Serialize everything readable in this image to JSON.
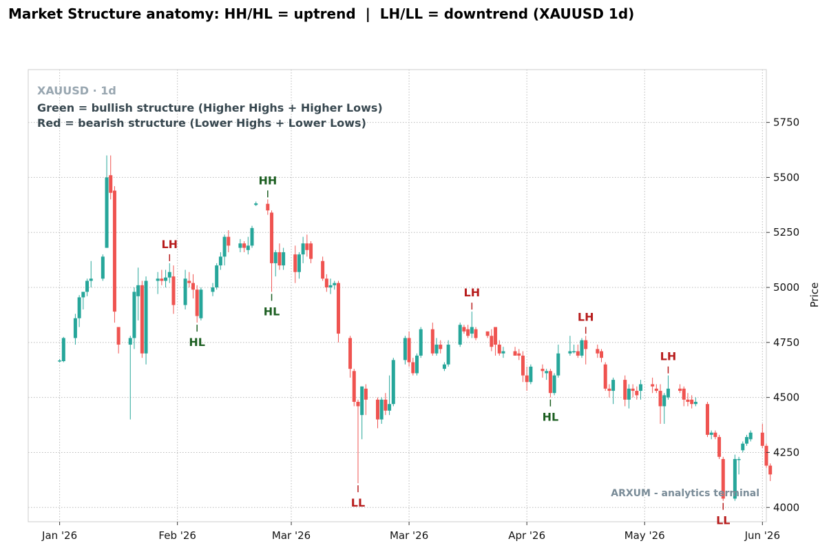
{
  "page_title": "Market Structure anatomy: HH/HL = uptrend  |  LH/LL = downtrend (XAUUSD 1d)",
  "info": {
    "symbol": "XAUUSD · 1d",
    "line1": "Green = bullish structure (Higher Highs + Higher Lows)",
    "line2": "Red = bearish structure (Lower Highs + Lower Lows)"
  },
  "watermark": "ARXUM - analytics terminal",
  "colors": {
    "up": "#26a69a",
    "down": "#ef5350",
    "bull_label": "#1b5e20",
    "bear_label": "#b71c1c",
    "info_symbol": "#98a6b0",
    "info_text": "#37474f"
  },
  "chart_data": {
    "type": "candlestick",
    "title": "Market Structure anatomy: HH/HL = uptrend  |  LH/LL = downtrend (XAUUSD 1d)",
    "ylabel": "Price",
    "ylim": [
      3935,
      5990
    ],
    "xlim": [
      "2025-12-24",
      "2026-06-30"
    ],
    "y_ticks": [
      4000,
      4250,
      4500,
      4750,
      5000,
      5250,
      5500,
      5750
    ],
    "x_ticks": [
      {
        "date": "2026-01-01",
        "label": "Jan '26"
      },
      {
        "date": "2026-01-31",
        "label": "Feb '26"
      },
      {
        "date": "2026-03-01",
        "label": "Mar '26"
      },
      {
        "date": "2026-03-31",
        "label": "Mar '26"
      },
      {
        "date": "2026-04-30",
        "label": "Apr '26"
      },
      {
        "date": "2026-05-30",
        "label": "May '26"
      },
      {
        "date": "2026-06-29",
        "label": "Jun '26"
      }
    ],
    "grid": true,
    "candles": [
      {
        "date": "2026-01-01",
        "o": 4665,
        "h": 4675,
        "l": 4660,
        "c": 4668
      },
      {
        "date": "2026-01-02",
        "o": 4665,
        "h": 4775,
        "l": 4660,
        "c": 4770
      },
      {
        "date": "2026-01-05",
        "o": 4770,
        "h": 4880,
        "l": 4740,
        "c": 4860
      },
      {
        "date": "2026-01-06",
        "o": 4860,
        "h": 4965,
        "l": 4820,
        "c": 4955
      },
      {
        "date": "2026-01-07",
        "o": 4955,
        "h": 4975,
        "l": 4900,
        "c": 4980
      },
      {
        "date": "2026-01-08",
        "o": 4980,
        "h": 5040,
        "l": 4960,
        "c": 5030
      },
      {
        "date": "2026-01-09",
        "o": 5030,
        "h": 5120,
        "l": 5000,
        "c": 5040
      },
      {
        "date": "2026-01-12",
        "o": 5040,
        "h": 5150,
        "l": 5030,
        "c": 5140
      },
      {
        "date": "2026-01-13",
        "o": 5180,
        "h": 5600,
        "l": 5180,
        "c": 5500
      },
      {
        "date": "2026-01-14",
        "o": 5510,
        "h": 5600,
        "l": 5400,
        "c": 5430
      },
      {
        "date": "2026-01-15",
        "o": 5440,
        "h": 5460,
        "l": 4840,
        "c": 4890
      },
      {
        "date": "2026-01-16",
        "o": 4820,
        "h": 4820,
        "l": 4700,
        "c": 4740
      },
      {
        "date": "2026-01-19",
        "o": 4740,
        "h": 4780,
        "l": 4400,
        "c": 4770
      },
      {
        "date": "2026-01-20",
        "o": 4770,
        "h": 5000,
        "l": 4720,
        "c": 4980
      },
      {
        "date": "2026-01-21",
        "o": 4960,
        "h": 5090,
        "l": 4850,
        "c": 5010
      },
      {
        "date": "2026-01-22",
        "o": 5010,
        "h": 5030,
        "l": 4680,
        "c": 4700
      },
      {
        "date": "2026-01-23",
        "o": 4700,
        "h": 5050,
        "l": 4650,
        "c": 5030
      },
      {
        "date": "2026-01-26",
        "o": 5030,
        "h": 5070,
        "l": 4970,
        "c": 5040
      },
      {
        "date": "2026-01-27",
        "o": 5040,
        "h": 5080,
        "l": 5010,
        "c": 5030
      },
      {
        "date": "2026-01-28",
        "o": 5030,
        "h": 5080,
        "l": 5000,
        "c": 5045
      },
      {
        "date": "2026-01-29",
        "o": 5045,
        "h": 5110,
        "l": 5020,
        "c": 5070
      },
      {
        "date": "2026-01-30",
        "o": 5050,
        "h": 5100,
        "l": 4880,
        "c": 4920
      },
      {
        "date": "2026-02-02",
        "o": 4920,
        "h": 5080,
        "l": 4900,
        "c": 5040
      },
      {
        "date": "2026-02-03",
        "o": 5030,
        "h": 5070,
        "l": 5000,
        "c": 5020
      },
      {
        "date": "2026-02-04",
        "o": 5020,
        "h": 5060,
        "l": 4950,
        "c": 4990
      },
      {
        "date": "2026-02-05",
        "o": 4990,
        "h": 5010,
        "l": 4840,
        "c": 4870
      },
      {
        "date": "2026-02-06",
        "o": 4860,
        "h": 5000,
        "l": 4850,
        "c": 4990
      },
      {
        "date": "2026-02-09",
        "o": 4980,
        "h": 5020,
        "l": 4960,
        "c": 5000
      },
      {
        "date": "2026-02-10",
        "o": 5000,
        "h": 5110,
        "l": 4990,
        "c": 5100
      },
      {
        "date": "2026-02-11",
        "o": 5100,
        "h": 5160,
        "l": 5080,
        "c": 5140
      },
      {
        "date": "2026-02-12",
        "o": 5140,
        "h": 5240,
        "l": 5100,
        "c": 5230
      },
      {
        "date": "2026-02-13",
        "o": 5230,
        "h": 5260,
        "l": 5160,
        "c": 5190
      },
      {
        "date": "2026-02-16",
        "o": 5180,
        "h": 5220,
        "l": 5160,
        "c": 5200
      },
      {
        "date": "2026-02-17",
        "o": 5200,
        "h": 5210,
        "l": 5160,
        "c": 5180
      },
      {
        "date": "2026-02-18",
        "o": 5170,
        "h": 5230,
        "l": 5150,
        "c": 5190
      },
      {
        "date": "2026-02-19",
        "o": 5190,
        "h": 5280,
        "l": 5180,
        "c": 5270
      },
      {
        "date": "2026-02-20",
        "o": 5375,
        "h": 5390,
        "l": 5370,
        "c": 5382
      },
      {
        "date": "2026-02-23",
        "o": 5380,
        "h": 5400,
        "l": 5330,
        "c": 5350
      },
      {
        "date": "2026-02-24",
        "o": 5340,
        "h": 5350,
        "l": 4980,
        "c": 5110
      },
      {
        "date": "2026-02-25",
        "o": 5110,
        "h": 5170,
        "l": 5050,
        "c": 5160
      },
      {
        "date": "2026-02-26",
        "o": 5160,
        "h": 5200,
        "l": 5080,
        "c": 5100
      },
      {
        "date": "2026-02-27",
        "o": 5100,
        "h": 5180,
        "l": 5080,
        "c": 5160
      },
      {
        "date": "2026-03-02",
        "o": 5150,
        "h": 5190,
        "l": 5020,
        "c": 5070
      },
      {
        "date": "2026-03-03",
        "o": 5070,
        "h": 5160,
        "l": 5040,
        "c": 5150
      },
      {
        "date": "2026-03-04",
        "o": 5150,
        "h": 5230,
        "l": 5110,
        "c": 5200
      },
      {
        "date": "2026-03-05",
        "o": 5200,
        "h": 5240,
        "l": 5140,
        "c": 5170
      },
      {
        "date": "2026-03-06",
        "o": 5200,
        "h": 5210,
        "l": 5110,
        "c": 5130
      },
      {
        "date": "2026-03-09",
        "o": 5120,
        "h": 5140,
        "l": 5030,
        "c": 5040
      },
      {
        "date": "2026-03-10",
        "o": 5040,
        "h": 5060,
        "l": 4980,
        "c": 5000
      },
      {
        "date": "2026-03-11",
        "o": 5000,
        "h": 5040,
        "l": 4970,
        "c": 5010
      },
      {
        "date": "2026-03-12",
        "o": 5010,
        "h": 5030,
        "l": 4990,
        "c": 5020
      },
      {
        "date": "2026-03-13",
        "o": 5020,
        "h": 5030,
        "l": 4750,
        "c": 4790
      },
      {
        "date": "2026-03-16",
        "o": 4770,
        "h": 4780,
        "l": 4590,
        "c": 4630
      },
      {
        "date": "2026-03-17",
        "o": 4620,
        "h": 4630,
        "l": 4460,
        "c": 4480
      },
      {
        "date": "2026-03-18",
        "o": 4480,
        "h": 4490,
        "l": 4110,
        "c": 4460
      },
      {
        "date": "2026-03-19",
        "o": 4420,
        "h": 4550,
        "l": 4310,
        "c": 4550
      },
      {
        "date": "2026-03-20",
        "o": 4540,
        "h": 4560,
        "l": 4420,
        "c": 4490
      },
      {
        "date": "2026-03-23",
        "o": 4490,
        "h": 4500,
        "l": 4360,
        "c": 4400
      },
      {
        "date": "2026-03-24",
        "o": 4400,
        "h": 4500,
        "l": 4380,
        "c": 4490
      },
      {
        "date": "2026-03-25",
        "o": 4490,
        "h": 4520,
        "l": 4420,
        "c": 4440
      },
      {
        "date": "2026-03-26",
        "o": 4440,
        "h": 4600,
        "l": 4420,
        "c": 4470
      },
      {
        "date": "2026-03-27",
        "o": 4470,
        "h": 4680,
        "l": 4460,
        "c": 4670
      },
      {
        "date": "2026-03-30",
        "o": 4670,
        "h": 4780,
        "l": 4650,
        "c": 4770
      },
      {
        "date": "2026-03-31",
        "o": 4770,
        "h": 4800,
        "l": 4640,
        "c": 4660
      },
      {
        "date": "2026-04-01",
        "o": 4660,
        "h": 4680,
        "l": 4600,
        "c": 4610
      },
      {
        "date": "2026-04-02",
        "o": 4610,
        "h": 4700,
        "l": 4600,
        "c": 4690
      },
      {
        "date": "2026-04-03",
        "o": 4690,
        "h": 4820,
        "l": 4680,
        "c": 4810
      },
      {
        "date": "2026-04-06",
        "o": 4810,
        "h": 4840,
        "l": 4690,
        "c": 4700
      },
      {
        "date": "2026-04-07",
        "o": 4700,
        "h": 4770,
        "l": 4690,
        "c": 4740
      },
      {
        "date": "2026-04-08",
        "o": 4740,
        "h": 4760,
        "l": 4700,
        "c": 4720
      },
      {
        "date": "2026-04-09",
        "o": 4630,
        "h": 4660,
        "l": 4620,
        "c": 4650
      },
      {
        "date": "2026-04-10",
        "o": 4650,
        "h": 4760,
        "l": 4640,
        "c": 4740
      },
      {
        "date": "2026-04-13",
        "o": 4740,
        "h": 4840,
        "l": 4730,
        "c": 4830
      },
      {
        "date": "2026-04-14",
        "o": 4820,
        "h": 4830,
        "l": 4790,
        "c": 4800
      },
      {
        "date": "2026-04-15",
        "o": 4810,
        "h": 4830,
        "l": 4770,
        "c": 4780
      },
      {
        "date": "2026-04-16",
        "o": 4790,
        "h": 4890,
        "l": 4770,
        "c": 4820
      },
      {
        "date": "2026-04-17",
        "o": 4810,
        "h": 4820,
        "l": 4760,
        "c": 4770
      },
      {
        "date": "2026-04-20",
        "o": 4800,
        "h": 4800,
        "l": 4770,
        "c": 4780
      },
      {
        "date": "2026-04-21",
        "o": 4780,
        "h": 4810,
        "l": 4710,
        "c": 4730
      },
      {
        "date": "2026-04-22",
        "o": 4820,
        "h": 4820,
        "l": 4690,
        "c": 4740
      },
      {
        "date": "2026-04-23",
        "o": 4740,
        "h": 4760,
        "l": 4690,
        "c": 4700
      },
      {
        "date": "2026-04-24",
        "o": 4700,
        "h": 4730,
        "l": 4680,
        "c": 4710
      },
      {
        "date": "2026-04-27",
        "o": 4710,
        "h": 4730,
        "l": 4690,
        "c": 4690
      },
      {
        "date": "2026-04-28",
        "o": 4700,
        "h": 4720,
        "l": 4670,
        "c": 4690
      },
      {
        "date": "2026-04-29",
        "o": 4690,
        "h": 4710,
        "l": 4570,
        "c": 4600
      },
      {
        "date": "2026-04-30",
        "o": 4600,
        "h": 4640,
        "l": 4530,
        "c": 4570
      },
      {
        "date": "2026-05-01",
        "o": 4570,
        "h": 4650,
        "l": 4560,
        "c": 4640
      },
      {
        "date": "2026-05-04",
        "o": 4630,
        "h": 4650,
        "l": 4590,
        "c": 4620
      },
      {
        "date": "2026-05-05",
        "o": 4610,
        "h": 4630,
        "l": 4580,
        "c": 4620
      },
      {
        "date": "2026-05-06",
        "o": 4620,
        "h": 4630,
        "l": 4500,
        "c": 4520
      },
      {
        "date": "2026-05-07",
        "o": 4520,
        "h": 4610,
        "l": 4510,
        "c": 4600
      },
      {
        "date": "2026-05-08",
        "o": 4600,
        "h": 4740,
        "l": 4590,
        "c": 4700
      },
      {
        "date": "2026-05-11",
        "o": 4700,
        "h": 4780,
        "l": 4690,
        "c": 4710
      },
      {
        "date": "2026-05-12",
        "o": 4710,
        "h": 4740,
        "l": 4700,
        "c": 4710
      },
      {
        "date": "2026-05-13",
        "o": 4710,
        "h": 4740,
        "l": 4680,
        "c": 4690
      },
      {
        "date": "2026-05-14",
        "o": 4690,
        "h": 4770,
        "l": 4680,
        "c": 4760
      },
      {
        "date": "2026-05-15",
        "o": 4760,
        "h": 4780,
        "l": 4650,
        "c": 4720
      },
      {
        "date": "2026-05-18",
        "o": 4720,
        "h": 4740,
        "l": 4680,
        "c": 4700
      },
      {
        "date": "2026-05-19",
        "o": 4710,
        "h": 4720,
        "l": 4660,
        "c": 4680
      },
      {
        "date": "2026-05-20",
        "o": 4650,
        "h": 4660,
        "l": 4530,
        "c": 4540
      },
      {
        "date": "2026-05-21",
        "o": 4540,
        "h": 4560,
        "l": 4500,
        "c": 4530
      },
      {
        "date": "2026-05-22",
        "o": 4530,
        "h": 4590,
        "l": 4470,
        "c": 4580
      },
      {
        "date": "2026-05-25",
        "o": 4580,
        "h": 4600,
        "l": 4460,
        "c": 4490
      },
      {
        "date": "2026-05-26",
        "o": 4490,
        "h": 4560,
        "l": 4450,
        "c": 4540
      },
      {
        "date": "2026-05-27",
        "o": 4540,
        "h": 4560,
        "l": 4500,
        "c": 4530
      },
      {
        "date": "2026-05-28",
        "o": 4530,
        "h": 4550,
        "l": 4490,
        "c": 4510
      },
      {
        "date": "2026-05-29",
        "o": 4530,
        "h": 4580,
        "l": 4490,
        "c": 4560
      },
      {
        "date": "2026-06-01",
        "o": 4560,
        "h": 4590,
        "l": 4520,
        "c": 4550
      },
      {
        "date": "2026-06-02",
        "o": 4540,
        "h": 4560,
        "l": 4520,
        "c": 4530
      },
      {
        "date": "2026-06-03",
        "o": 4530,
        "h": 4560,
        "l": 4380,
        "c": 4460
      },
      {
        "date": "2026-06-04",
        "o": 4460,
        "h": 4520,
        "l": 4380,
        "c": 4510
      },
      {
        "date": "2026-06-05",
        "o": 4500,
        "h": 4600,
        "l": 4490,
        "c": 4540
      },
      {
        "date": "2026-06-08",
        "o": 4540,
        "h": 4560,
        "l": 4520,
        "c": 4530
      },
      {
        "date": "2026-06-09",
        "o": 4540,
        "h": 4550,
        "l": 4460,
        "c": 4490
      },
      {
        "date": "2026-06-10",
        "o": 4490,
        "h": 4520,
        "l": 4460,
        "c": 4480
      },
      {
        "date": "2026-06-11",
        "o": 4490,
        "h": 4510,
        "l": 4450,
        "c": 4470
      },
      {
        "date": "2026-06-12",
        "o": 4470,
        "h": 4500,
        "l": 4460,
        "c": 4480
      },
      {
        "date": "2026-06-15",
        "o": 4470,
        "h": 4480,
        "l": 4320,
        "c": 4330
      },
      {
        "date": "2026-06-16",
        "o": 4330,
        "h": 4350,
        "l": 4310,
        "c": 4340
      },
      {
        "date": "2026-06-17",
        "o": 4340,
        "h": 4350,
        "l": 4310,
        "c": 4320
      },
      {
        "date": "2026-06-18",
        "o": 4320,
        "h": 4330,
        "l": 4220,
        "c": 4230
      },
      {
        "date": "2026-06-19",
        "o": 4220,
        "h": 4230,
        "l": 4030,
        "c": 4040
      },
      {
        "date": "2026-06-22",
        "o": 4040,
        "h": 4240,
        "l": 4030,
        "c": 4220
      },
      {
        "date": "2026-06-23",
        "o": 4220,
        "h": 4230,
        "l": 4150,
        "c": 4220
      },
      {
        "date": "2026-06-24",
        "o": 4260,
        "h": 4300,
        "l": 4250,
        "c": 4290
      },
      {
        "date": "2026-06-25",
        "o": 4290,
        "h": 4330,
        "l": 4280,
        "c": 4320
      },
      {
        "date": "2026-06-26",
        "o": 4310,
        "h": 4350,
        "l": 4300,
        "c": 4340
      },
      {
        "date": "2026-06-29",
        "o": 4340,
        "h": 4380,
        "l": 4270,
        "c": 4280
      },
      {
        "date": "2026-06-30",
        "o": 4280,
        "h": 4290,
        "l": 4180,
        "c": 4190
      },
      {
        "date": "2026-07-01",
        "o": 4190,
        "h": 4200,
        "l": 4120,
        "c": 4150
      }
    ],
    "annotations": [
      {
        "label": "LH",
        "kind": "bear",
        "pos": "above",
        "date": "2026-01-29",
        "price": 5110
      },
      {
        "label": "HL",
        "kind": "bull",
        "pos": "below",
        "date": "2026-02-05",
        "price": 4840
      },
      {
        "label": "HH",
        "kind": "bull",
        "pos": "above",
        "date": "2026-02-23",
        "price": 5400
      },
      {
        "label": "HL",
        "kind": "bull",
        "pos": "below",
        "date": "2026-02-24",
        "price": 4980
      },
      {
        "label": "LL",
        "kind": "bear",
        "pos": "below",
        "date": "2026-03-18",
        "price": 4110
      },
      {
        "label": "LH",
        "kind": "bear",
        "pos": "above",
        "date": "2026-04-16",
        "price": 4890
      },
      {
        "label": "HL",
        "kind": "bull",
        "pos": "below",
        "date": "2026-05-06",
        "price": 4500
      },
      {
        "label": "LH",
        "kind": "bear",
        "pos": "above",
        "date": "2026-05-15",
        "price": 4780
      },
      {
        "label": "LH",
        "kind": "bear",
        "pos": "above",
        "date": "2026-06-05",
        "price": 4600
      },
      {
        "label": "LL",
        "kind": "bear",
        "pos": "below",
        "date": "2026-06-19",
        "price": 4030
      }
    ]
  }
}
